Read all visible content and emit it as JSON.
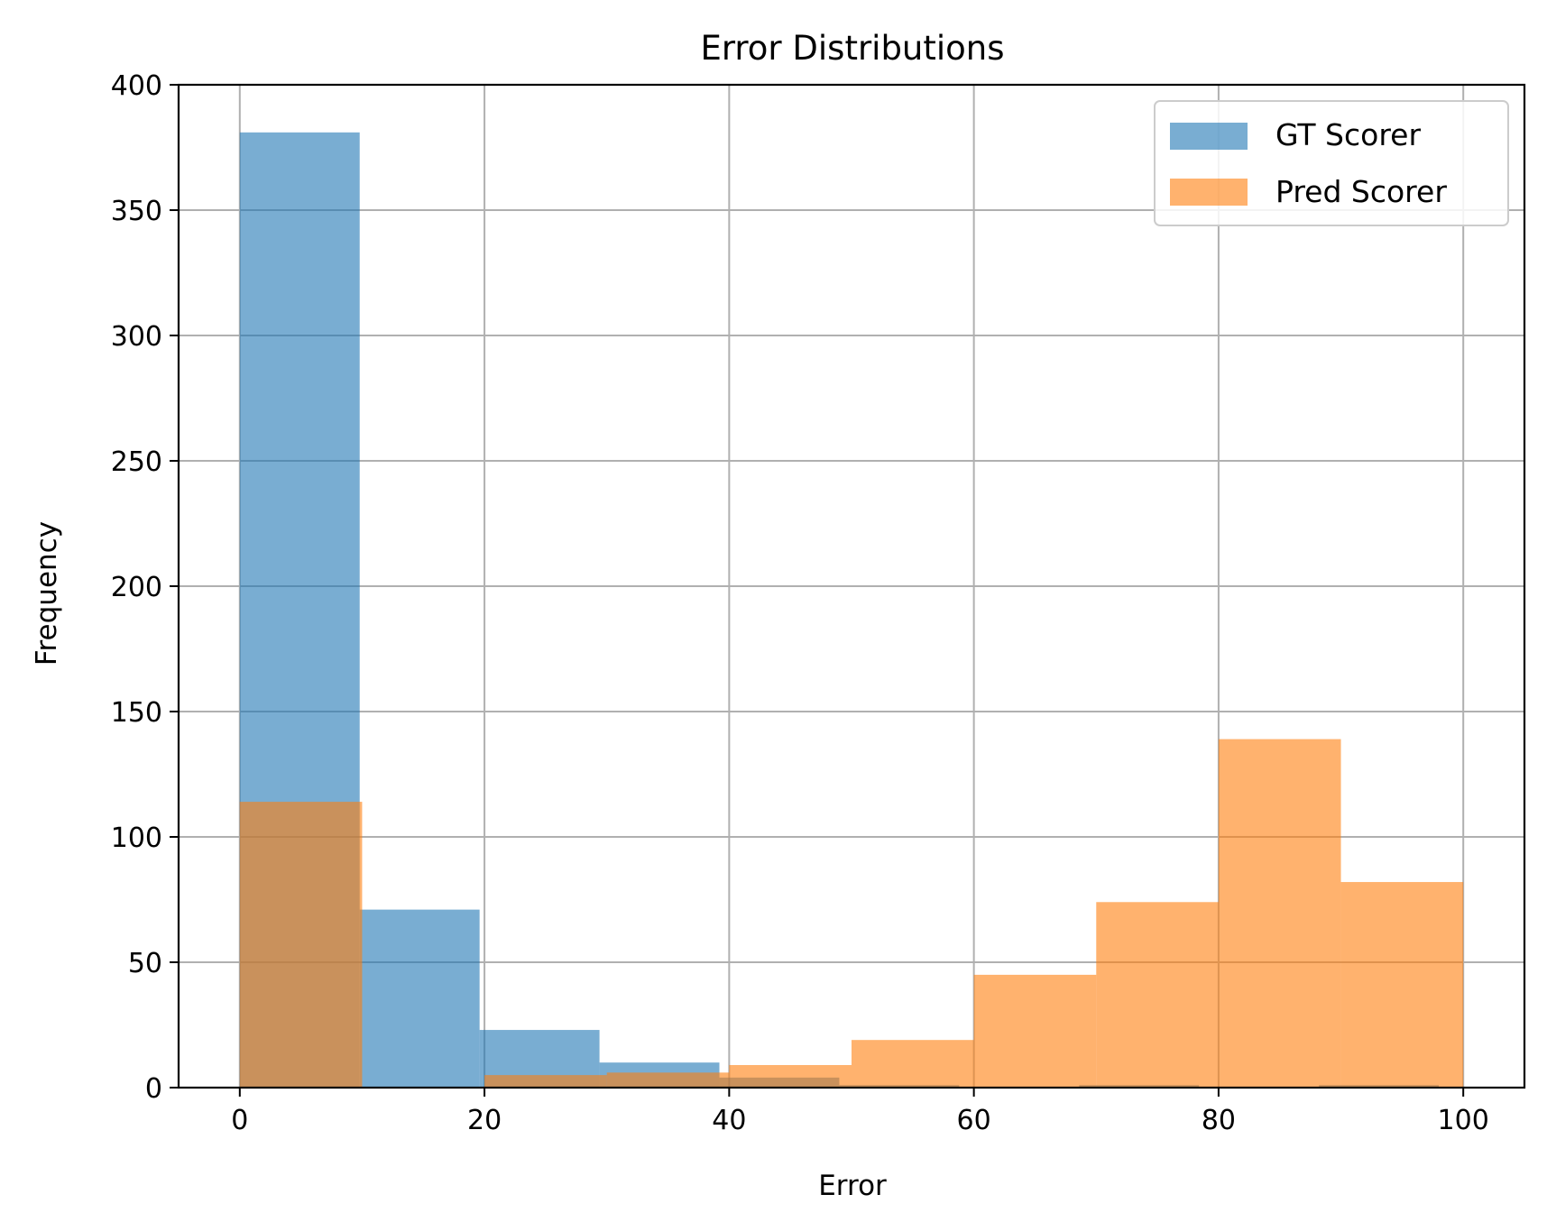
{
  "chart_data": {
    "type": "bar",
    "title": "Error Distributions",
    "xlabel": "Error",
    "ylabel": "Frequency",
    "xlim": [
      -5,
      105
    ],
    "ylim": [
      0,
      400
    ],
    "xticks": [
      0,
      20,
      40,
      60,
      80,
      100
    ],
    "yticks": [
      0,
      50,
      100,
      150,
      200,
      250,
      300,
      350,
      400
    ],
    "grid": true,
    "legend_position": "top-right",
    "series": [
      {
        "name": "GT Scorer",
        "color": "#1f77b4",
        "opacity": 0.6,
        "bins": [
          {
            "start": 0,
            "end": 9.8,
            "value": 381
          },
          {
            "start": 9.8,
            "end": 19.6,
            "value": 71
          },
          {
            "start": 19.6,
            "end": 29.4,
            "value": 23
          },
          {
            "start": 29.4,
            "end": 39.2,
            "value": 10
          },
          {
            "start": 39.2,
            "end": 49.0,
            "value": 4
          },
          {
            "start": 49.0,
            "end": 58.8,
            "value": 1
          },
          {
            "start": 58.8,
            "end": 68.6,
            "value": 0
          },
          {
            "start": 68.6,
            "end": 78.4,
            "value": 1
          },
          {
            "start": 78.4,
            "end": 88.2,
            "value": 0
          },
          {
            "start": 88.2,
            "end": 98.0,
            "value": 1
          }
        ]
      },
      {
        "name": "Pred Scorer",
        "color": "#ff7f0e",
        "opacity": 0.6,
        "bins": [
          {
            "start": 0,
            "end": 10,
            "value": 114
          },
          {
            "start": 10,
            "end": 20,
            "value": 0
          },
          {
            "start": 20,
            "end": 30,
            "value": 5
          },
          {
            "start": 30,
            "end": 40,
            "value": 6
          },
          {
            "start": 40,
            "end": 50,
            "value": 9
          },
          {
            "start": 50,
            "end": 60,
            "value": 19
          },
          {
            "start": 60,
            "end": 70,
            "value": 45
          },
          {
            "start": 70,
            "end": 80,
            "value": 74
          },
          {
            "start": 80,
            "end": 90,
            "value": 139
          },
          {
            "start": 90,
            "end": 100,
            "value": 82
          }
        ]
      }
    ]
  }
}
